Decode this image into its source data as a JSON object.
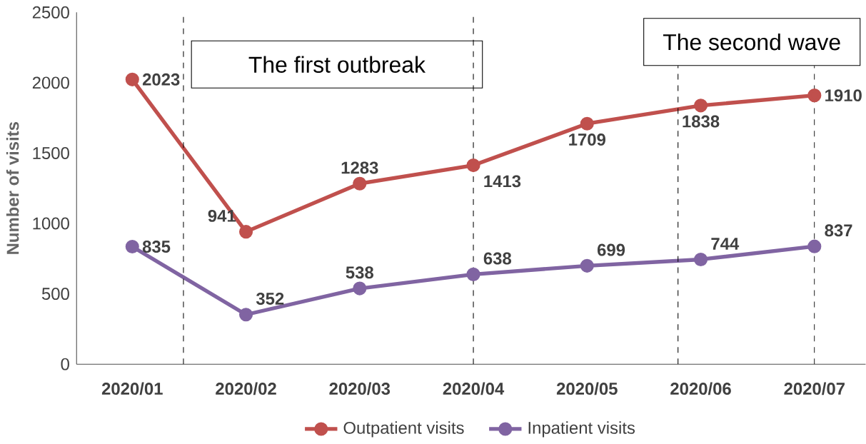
{
  "chart_data": {
    "type": "line",
    "ylabel": "Number  of visits",
    "categories": [
      "2020/01",
      "2020/02",
      "2020/03",
      "2020/04",
      "2020/05",
      "2020/06",
      "2020/07"
    ],
    "series": [
      {
        "name": "Outpatient visits",
        "color": "#c0504d",
        "values": [
          2023,
          941,
          1283,
          1413,
          1709,
          1838,
          1910
        ]
      },
      {
        "name": "Inpatient visits",
        "color": "#8064a2",
        "values": [
          835,
          352,
          538,
          638,
          699,
          744,
          837
        ]
      }
    ],
    "ylim": [
      0,
      2500
    ],
    "yticks": [
      0,
      500,
      1000,
      1500,
      2000,
      2500
    ],
    "data_labels": true,
    "legend": "bottom",
    "marker": "circle",
    "line_style": "solid",
    "grid": false,
    "ref_lines": [
      {
        "axis": "x",
        "value": "2020/04",
        "line_style": "dashed",
        "color": "#000000"
      },
      {
        "axis": "x",
        "value": "2020/06",
        "line_style": "dashed",
        "color": "#000000"
      },
      {
        "axis": "x",
        "value": "2020/07",
        "line_style": "dashed",
        "color": "#000000"
      }
    ],
    "annotations": [
      "The first outbreak",
      "The second wave"
    ]
  }
}
